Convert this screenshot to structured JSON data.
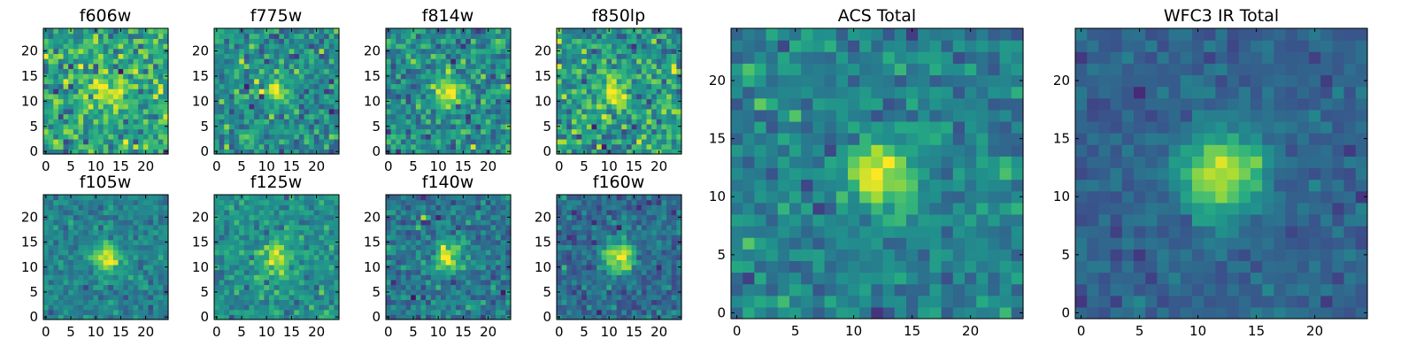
{
  "figure": {
    "colormap": "viridis",
    "colormap_stops": [
      "#440154",
      "#472c7a",
      "#3b518b",
      "#2c718e",
      "#21908d",
      "#27ad81",
      "#5cc863",
      "#aadc32",
      "#fde725"
    ]
  },
  "chart_data": [
    {
      "type": "heatmap",
      "title": "f606w",
      "image_size": [
        25,
        25
      ],
      "source_center": [
        12,
        12
      ],
      "source_sigma": 2.3,
      "source_peak": 0.32,
      "background": 0.6,
      "noise": 0.28,
      "xticks": [
        0,
        5,
        10,
        15,
        20
      ],
      "yticks": [
        0,
        5,
        10,
        15,
        20
      ]
    },
    {
      "type": "heatmap",
      "title": "f775w",
      "image_size": [
        25,
        25
      ],
      "source_center": [
        12,
        12
      ],
      "source_sigma": 2.0,
      "source_peak": 0.45,
      "background": 0.48,
      "noise": 0.25,
      "xticks": [
        0,
        5,
        10,
        15,
        20
      ],
      "yticks": [
        0,
        5,
        10,
        15,
        20
      ]
    },
    {
      "type": "heatmap",
      "title": "f814w",
      "image_size": [
        25,
        25
      ],
      "source_center": [
        12,
        12
      ],
      "source_sigma": 2.0,
      "source_peak": 0.5,
      "background": 0.48,
      "noise": 0.25,
      "xticks": [
        0,
        5,
        10,
        15,
        20
      ],
      "yticks": [
        0,
        5,
        10,
        15,
        20
      ]
    },
    {
      "type": "heatmap",
      "title": "f850lp",
      "image_size": [
        25,
        25
      ],
      "source_center": [
        11,
        12
      ],
      "source_sigma": 2.0,
      "source_peak": 0.4,
      "background": 0.55,
      "noise": 0.28,
      "xticks": [
        0,
        5,
        10,
        15,
        20
      ],
      "yticks": [
        0,
        5,
        10,
        15,
        20
      ]
    },
    {
      "type": "heatmap",
      "title": "f105w",
      "image_size": [
        25,
        25
      ],
      "source_center": [
        12,
        12
      ],
      "source_sigma": 1.9,
      "source_peak": 0.55,
      "background": 0.45,
      "noise": 0.14,
      "xticks": [
        0,
        5,
        10,
        15,
        20
      ],
      "yticks": [
        0,
        5,
        10,
        15,
        20
      ]
    },
    {
      "type": "heatmap",
      "title": "f125w",
      "image_size": [
        25,
        25
      ],
      "source_center": [
        12,
        12
      ],
      "source_sigma": 2.4,
      "source_peak": 0.42,
      "background": 0.5,
      "noise": 0.17,
      "xticks": [
        0,
        5,
        10,
        15,
        20
      ],
      "yticks": [
        0,
        5,
        10,
        15,
        20
      ]
    },
    {
      "type": "heatmap",
      "title": "f140w",
      "image_size": [
        25,
        25
      ],
      "source_center": [
        12,
        12
      ],
      "source_sigma": 2.1,
      "source_peak": 0.55,
      "background": 0.4,
      "noise": 0.2,
      "xticks": [
        0,
        5,
        10,
        15,
        20
      ],
      "yticks": [
        0,
        5,
        10,
        15,
        20
      ]
    },
    {
      "type": "heatmap",
      "title": "f160w",
      "image_size": [
        25,
        25
      ],
      "source_center": [
        12,
        12
      ],
      "source_sigma": 2.2,
      "source_peak": 0.62,
      "background": 0.35,
      "noise": 0.17,
      "xticks": [
        0,
        5,
        10,
        15,
        20
      ],
      "yticks": [
        0,
        5,
        10,
        15,
        20
      ]
    },
    {
      "type": "heatmap",
      "title": "ACS Total",
      "image_size": [
        25,
        25
      ],
      "source_center": [
        12,
        12
      ],
      "source_sigma": 1.9,
      "source_peak": 0.55,
      "background": 0.45,
      "noise": 0.18,
      "xticks": [
        0,
        5,
        10,
        15,
        20
      ],
      "yticks": [
        0,
        5,
        10,
        15,
        20
      ]
    },
    {
      "type": "heatmap",
      "title": "WFC3 IR Total",
      "image_size": [
        25,
        25
      ],
      "source_center": [
        12,
        12
      ],
      "source_sigma": 2.5,
      "source_peak": 0.62,
      "background": 0.32,
      "noise": 0.11,
      "xticks": [
        0,
        5,
        10,
        15,
        20
      ],
      "yticks": [
        0,
        5,
        10,
        15,
        20
      ]
    }
  ]
}
